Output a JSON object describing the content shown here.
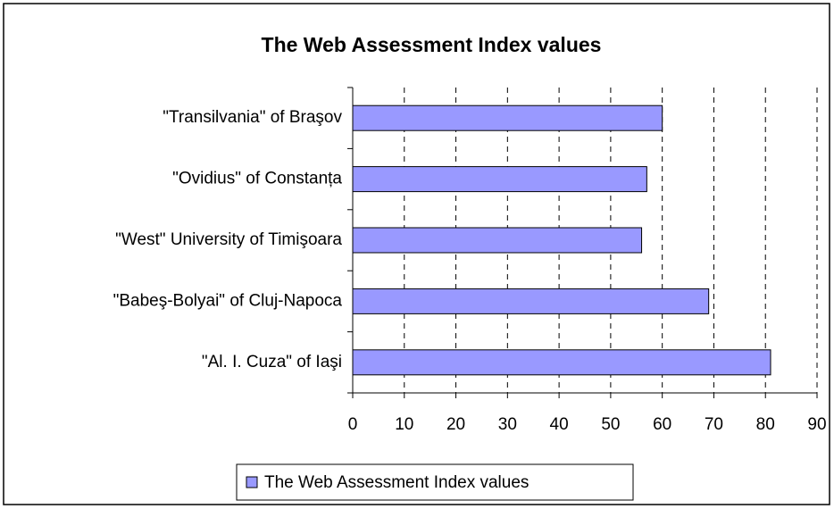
{
  "chart_data": {
    "type": "bar",
    "orientation": "horizontal",
    "title": "The Web Assessment Index values",
    "categories": [
      "\"Transilvania\" of Braşov",
      "\"Ovidius\" of Constanța",
      "\"West\" University of Timişoara",
      "\"Babeş-Bolyai\" of Cluj-Napoca",
      "\"Al. I. Cuza\" of Iaşi"
    ],
    "series": [
      {
        "name": "The Web Assessment Index values",
        "color": "#9999ff",
        "values": [
          60,
          57,
          56,
          69,
          81
        ]
      }
    ],
    "xlim": [
      0,
      90
    ],
    "xticks": [
      0,
      10,
      20,
      30,
      40,
      50,
      60,
      70,
      80,
      90
    ],
    "grid": true,
    "legend": "bottom"
  }
}
